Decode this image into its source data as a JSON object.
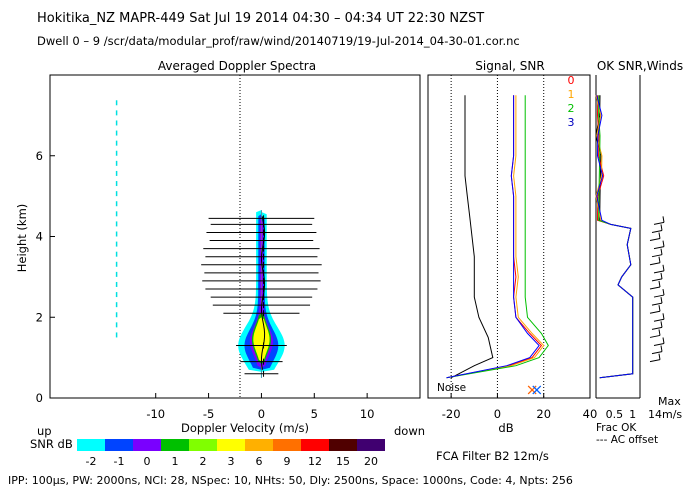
{
  "header": {
    "line1": "Hokitika_NZ  MAPR-449  Sat Jul 19 2014 04:30 – 04:34 UT 22:30 NZST",
    "line2": "Dwell  0 – 9   /scr/data/modular_prof/raw/wind/20140719/19-Jul-2014_04-30-01.cor.nc"
  },
  "footer": "IPP: 100µs,  PW: 2000ns,  NCI: 28,  NSpec: 10, NHts: 50,  Dly: 2500ns,  Space: 1000ns,  Code: 4,  Npts: 256",
  "filter_label": "FCA Filter B2 12m/s",
  "colors": {
    "snr_scale": [
      "#00ffff",
      "#0044ff",
      "#7a00ff",
      "#00c000",
      "#80ff00",
      "#ffff00",
      "#ffb000",
      "#ff7000",
      "#ff0000",
      "#500000",
      "#400070"
    ],
    "signal_curves": [
      "#000000",
      "#ff0000",
      "#ffa500",
      "#00c000",
      "#0000ff"
    ]
  },
  "chart_data": [
    {
      "name": "spectra",
      "type": "heatmap",
      "title": "Averaged Doppler Spectra",
      "xlabel": "Doppler Velocity (m/s)",
      "ylabel": "Height (km)",
      "xlim": [
        -20,
        15
      ],
      "ylim": [
        0,
        8
      ],
      "xticks": [
        -10,
        -5,
        0,
        5,
        10
      ],
      "yticks": [
        0,
        2,
        4,
        6
      ],
      "side_labels": {
        "left": "up",
        "right": "down"
      },
      "spectral_width_bars": [
        {
          "height": 0.6,
          "halfwidth": 1.6
        },
        {
          "height": 0.9,
          "halfwidth": 2.0
        },
        {
          "height": 1.3,
          "halfwidth": 2.4
        },
        {
          "height": 2.1,
          "halfwidth": 3.6
        },
        {
          "height": 2.3,
          "halfwidth": 4.6
        },
        {
          "height": 2.5,
          "halfwidth": 4.8
        },
        {
          "height": 2.7,
          "halfwidth": 5.3
        },
        {
          "height": 2.9,
          "halfwidth": 5.6
        },
        {
          "height": 3.1,
          "halfwidth": 5.4
        },
        {
          "height": 3.3,
          "halfwidth": 5.7
        },
        {
          "height": 3.5,
          "halfwidth": 5.3
        },
        {
          "height": 3.7,
          "halfwidth": 5.5
        },
        {
          "height": 3.9,
          "halfwidth": 4.9
        },
        {
          "height": 4.1,
          "halfwidth": 5.2
        },
        {
          "height": 4.3,
          "halfwidth": 4.8
        },
        {
          "height": 4.45,
          "halfwidth": 5.0
        }
      ]
    },
    {
      "name": "snr_colorbar",
      "type": "table",
      "label": "SNR dB",
      "values": [
        -2,
        -1,
        0,
        1,
        2,
        3,
        6,
        9,
        12,
        15,
        20
      ]
    },
    {
      "name": "signal_snr",
      "type": "line",
      "title": "Signal, SNR",
      "xlabel": "dB",
      "xlim": [
        -30,
        40
      ],
      "xticks": [
        -20,
        0,
        20,
        40
      ],
      "ylim": [
        0,
        8
      ],
      "noise_label": "Noise",
      "series": [
        {
          "name": "signal",
          "y": [
            0.5,
            0.8,
            1.0,
            1.5,
            2.0,
            2.5,
            3.0,
            3.5,
            4.0,
            4.5,
            5.0,
            5.5,
            6.0,
            6.5,
            7.0,
            7.5
          ],
          "x": [
            -20,
            -10,
            -2,
            -4,
            -8,
            -10,
            -10,
            -10,
            -11,
            -12,
            -13,
            -14,
            -14,
            -14,
            -14,
            -14
          ]
        },
        {
          "name": "0",
          "y": [
            0.5,
            0.8,
            1.0,
            1.3,
            1.6,
            2.0,
            2.5,
            3.0,
            3.5,
            4.0,
            4.5,
            5.0,
            5.5,
            6.0,
            6.5,
            7.0,
            7.5
          ],
          "x": [
            -22,
            5,
            15,
            19,
            14,
            8,
            7,
            8,
            7,
            7,
            7,
            7,
            6,
            7,
            7,
            7,
            7
          ]
        },
        {
          "name": "1",
          "y": [
            0.5,
            0.8,
            1.0,
            1.3,
            1.6,
            2.0,
            2.5,
            3.0,
            3.5,
            4.0,
            4.5,
            5.0,
            5.5,
            6.0,
            6.5,
            7.0,
            7.5
          ],
          "x": [
            -22,
            6,
            16,
            20,
            15,
            9,
            8,
            9,
            8,
            8,
            8,
            8,
            7,
            8,
            8,
            8,
            8
          ]
        },
        {
          "name": "2",
          "y": [
            0.5,
            0.8,
            1.0,
            1.3,
            1.6,
            2.0,
            2.5,
            3.0,
            3.5,
            4.0,
            4.5,
            5.0,
            5.5,
            6.0,
            6.5,
            7.0,
            7.5
          ],
          "x": [
            -22,
            8,
            18,
            22,
            19,
            13,
            12,
            12,
            12,
            12,
            12,
            12,
            12,
            12,
            12,
            12,
            12
          ]
        },
        {
          "name": "3",
          "y": [
            0.5,
            0.8,
            1.0,
            1.3,
            1.6,
            2.0,
            2.5,
            3.0,
            3.5,
            4.0,
            4.5,
            5.0,
            5.5,
            6.0,
            6.5,
            7.0,
            7.5
          ],
          "x": [
            -22,
            4,
            14,
            18,
            13,
            8,
            7,
            7,
            7,
            7,
            7,
            7,
            6,
            7,
            7,
            7,
            7
          ]
        }
      ],
      "markers_x": [
        15,
        17
      ]
    },
    {
      "name": "ok_snr_winds",
      "type": "line",
      "title": "OK SNR,Winds",
      "xticks": [
        0.5,
        1
      ],
      "xlim": [
        0,
        1.2
      ],
      "ylim": [
        0,
        8
      ],
      "labels": [
        "0",
        "1",
        "2",
        "3"
      ],
      "legend_bottom": [
        "Frac OK",
        "--- AC offset"
      ],
      "max_label": "Max",
      "max_value": "14m/s",
      "frac_ok": [
        {
          "h": 0.5,
          "f": 0.1
        },
        {
          "h": 0.6,
          "f": 1.0
        },
        {
          "h": 1.0,
          "f": 1.0
        },
        {
          "h": 2.0,
          "f": 1.0
        },
        {
          "h": 2.5,
          "f": 1.0
        },
        {
          "h": 2.8,
          "f": 0.6
        },
        {
          "h": 3.0,
          "f": 0.7
        },
        {
          "h": 3.3,
          "f": 0.95
        },
        {
          "h": 3.8,
          "f": 0.85
        },
        {
          "h": 4.2,
          "f": 0.95
        },
        {
          "h": 4.3,
          "f": 0.4
        },
        {
          "h": 4.4,
          "f": 0.1
        },
        {
          "h": 5.0,
          "f": 0.05
        },
        {
          "h": 5.5,
          "f": 0.15
        },
        {
          "h": 6.0,
          "f": 0.1
        },
        {
          "h": 6.5,
          "f": 0.05
        },
        {
          "h": 7.0,
          "f": 0.1
        },
        {
          "h": 7.5,
          "f": 0.05
        }
      ],
      "wind_heights": [
        0.9,
        1.1,
        1.3,
        1.5,
        1.7,
        1.9,
        2.1,
        2.3,
        2.5,
        2.7,
        2.9,
        3.1,
        3.3,
        3.5,
        3.7,
        3.9,
        4.1,
        4.3
      ]
    }
  ]
}
